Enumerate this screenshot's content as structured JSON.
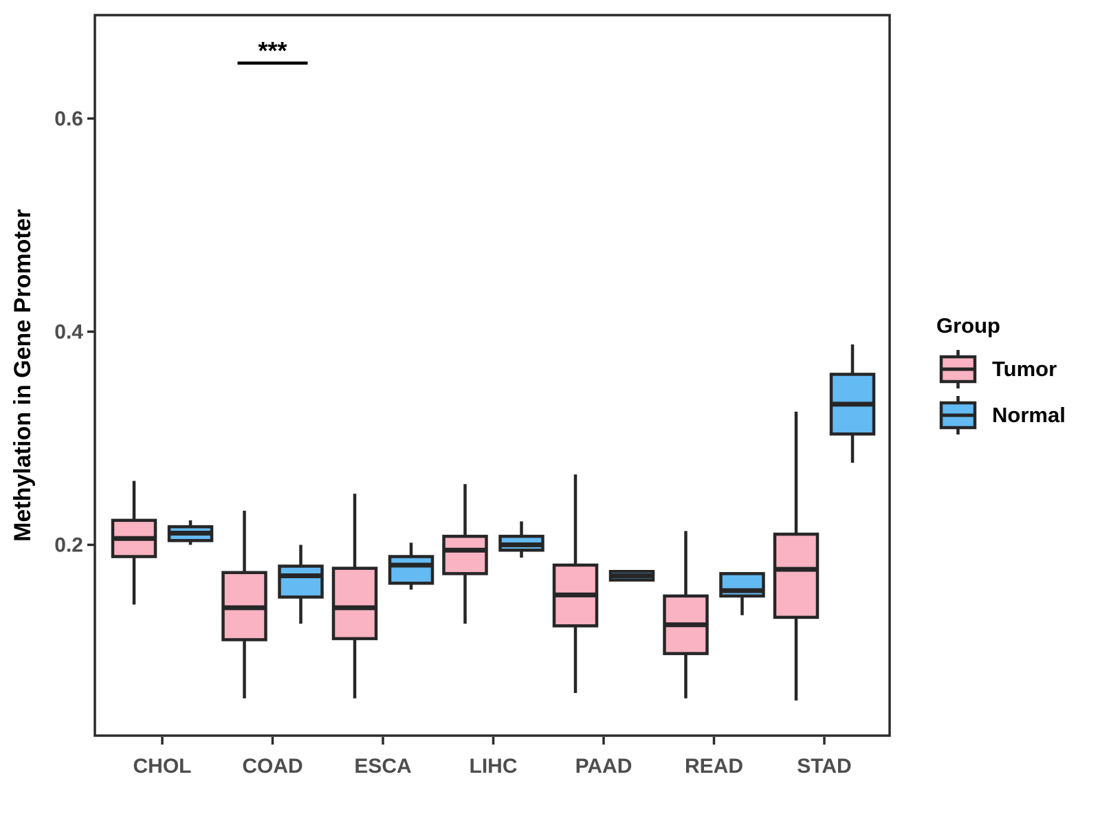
{
  "figure": {
    "background": "#ffffff"
  },
  "legend": {
    "title": "Group",
    "items": [
      {
        "label": "Tumor",
        "color": "#F9B3C3"
      },
      {
        "label": "Normal",
        "color": "#64BAF2"
      }
    ]
  },
  "chart_data": {
    "type": "grouped_boxplot",
    "title": "",
    "xlabel": "",
    "ylabel": "Methylation in Gene Promoter",
    "categories": [
      "CHOL",
      "COAD",
      "ESCA",
      "LIHC",
      "PAAD",
      "READ",
      "STAD"
    ],
    "ylim": [
      0.021,
      0.697
    ],
    "yticks": [
      0.2,
      0.4,
      0.6
    ],
    "ytick_labels": [
      "0.2",
      "0.4",
      "0.6"
    ],
    "grid": false,
    "legend_position": "right",
    "colors": {
      "tumor_fill": "#F9B3C3",
      "normal_fill": "#64BAF2",
      "box_stroke": "#262626",
      "axis_line": "#2b2b2b",
      "axis_text": "#4d4d4d",
      "title_text": "#000000"
    },
    "series": [
      {
        "name": "Tumor",
        "color": "#F9B3C3",
        "boxes": [
          {
            "category": "CHOL",
            "min": 0.144,
            "q1": 0.189,
            "median": 0.206,
            "q3": 0.223,
            "max": 0.26
          },
          {
            "category": "COAD",
            "min": 0.056,
            "q1": 0.111,
            "median": 0.141,
            "q3": 0.174,
            "max": 0.232
          },
          {
            "category": "ESCA",
            "min": 0.056,
            "q1": 0.112,
            "median": 0.141,
            "q3": 0.178,
            "max": 0.248
          },
          {
            "category": "LIHC",
            "min": 0.126,
            "q1": 0.173,
            "median": 0.195,
            "q3": 0.208,
            "max": 0.257
          },
          {
            "category": "PAAD",
            "min": 0.061,
            "q1": 0.124,
            "median": 0.153,
            "q3": 0.181,
            "max": 0.266
          },
          {
            "category": "READ",
            "min": 0.056,
            "q1": 0.098,
            "median": 0.125,
            "q3": 0.152,
            "max": 0.213
          },
          {
            "category": "STAD",
            "min": 0.054,
            "q1": 0.132,
            "median": 0.177,
            "q3": 0.21,
            "max": 0.325
          }
        ]
      },
      {
        "name": "Normal",
        "color": "#64BAF2",
        "boxes": [
          {
            "category": "CHOL",
            "min": 0.2,
            "q1": 0.204,
            "median": 0.211,
            "q3": 0.217,
            "max": 0.223
          },
          {
            "category": "COAD",
            "min": 0.126,
            "q1": 0.151,
            "median": 0.171,
            "q3": 0.18,
            "max": 0.2
          },
          {
            "category": "ESCA",
            "min": 0.158,
            "q1": 0.164,
            "median": 0.181,
            "q3": 0.189,
            "max": 0.202
          },
          {
            "category": "LIHC",
            "min": 0.188,
            "q1": 0.195,
            "median": 0.2,
            "q3": 0.208,
            "max": 0.222
          },
          {
            "category": "PAAD",
            "min": 0.167,
            "q1": 0.167,
            "median": 0.171,
            "q3": 0.175,
            "max": 0.175
          },
          {
            "category": "READ",
            "min": 0.134,
            "q1": 0.152,
            "median": 0.157,
            "q3": 0.173,
            "max": 0.173
          },
          {
            "category": "STAD",
            "min": 0.277,
            "q1": 0.304,
            "median": 0.332,
            "q3": 0.36,
            "max": 0.388
          }
        ]
      }
    ],
    "annotations": [
      {
        "type": "significance",
        "label": "***",
        "category": "COAD",
        "y": 0.652
      }
    ]
  }
}
